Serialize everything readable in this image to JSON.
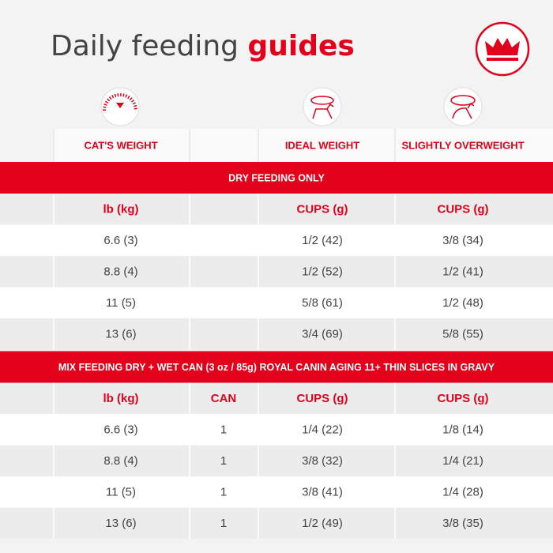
{
  "header": {
    "title": "Daily feeding",
    "title_emphasis": "guides"
  },
  "table": {
    "column_headers": [
      "CAT'S WEIGHT",
      "IDEAL WEIGHT",
      "SLIGHTLY OVERWEIGHT"
    ],
    "sections": [
      {
        "title": "DRY FEEDING ONLY",
        "header": [
          "lb (kg)",
          "CUPS (g)",
          "CUPS (g)"
        ],
        "rows": [
          [
            "6.6 (3)",
            "1/2 (42)",
            "3/8 (34)"
          ],
          [
            "8.8 (4)",
            "1/2 (52)",
            "1/2 (41)"
          ],
          [
            "11 (5)",
            "5/8 (61)",
            "1/2 (48)"
          ],
          [
            "13 (6)",
            "3/4 (69)",
            "5/8 (55)"
          ]
        ]
      },
      {
        "title": "MIX FEEDING DRY + WET CAN (3 oz / 85g) ROYAL CANIN AGING 11+ THIN SLICES IN GRAVY",
        "header": [
          "lb (kg)",
          "CAN",
          "CUPS (g)",
          "CUPS (g)"
        ],
        "rows": [
          [
            "6.6 (3)",
            "1",
            "1/4 (22)",
            "1/8 (14)"
          ],
          [
            "8.8 (4)",
            "1",
            "3/8 (32)",
            "1/4 (21)"
          ],
          [
            "11 (5)",
            "1",
            "3/8 (41)",
            "1/4 (28)"
          ],
          [
            "13 (6)",
            "1",
            "1/2 (49)",
            "3/8 (35)"
          ]
        ]
      }
    ]
  }
}
